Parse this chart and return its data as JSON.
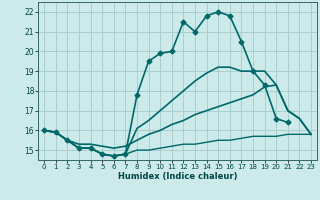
{
  "xlabel": "Humidex (Indice chaleur)",
  "background_color": "#cceaea",
  "grid_color": "#aacfcf",
  "line_color": "#006868",
  "xlim": [
    -0.5,
    23.5
  ],
  "ylim": [
    14.5,
    22.5
  ],
  "xticks": [
    0,
    1,
    2,
    3,
    4,
    5,
    6,
    7,
    8,
    9,
    10,
    11,
    12,
    13,
    14,
    15,
    16,
    17,
    18,
    19,
    20,
    21,
    22,
    23
  ],
  "yticks": [
    15,
    16,
    17,
    18,
    19,
    20,
    21,
    22
  ],
  "series": [
    {
      "x": [
        0,
        1,
        2,
        3,
        4,
        5,
        6,
        7,
        8,
        9,
        10,
        11,
        12,
        13,
        14,
        15,
        16,
        17,
        18,
        19,
        20,
        21
      ],
      "y": [
        16.0,
        15.9,
        15.5,
        15.1,
        15.1,
        14.8,
        14.7,
        14.8,
        17.8,
        19.5,
        19.9,
        20.0,
        21.5,
        21.0,
        21.8,
        22.0,
        21.8,
        20.5,
        19.0,
        18.3,
        16.6,
        16.4
      ],
      "marker": "D",
      "markersize": 2.5,
      "linewidth": 1.2
    },
    {
      "x": [
        0,
        1,
        2,
        3,
        4,
        5,
        6,
        7,
        8,
        9,
        10,
        11,
        12,
        13,
        14,
        15,
        16,
        17,
        18,
        19,
        20,
        21,
        22,
        23
      ],
      "y": [
        16.0,
        15.9,
        15.5,
        15.1,
        15.1,
        14.8,
        14.7,
        14.8,
        16.1,
        16.5,
        17.0,
        17.5,
        18.0,
        18.5,
        18.9,
        19.2,
        19.2,
        19.0,
        19.0,
        19.0,
        18.3,
        17.0,
        16.6,
        15.8
      ],
      "marker": null,
      "markersize": 0,
      "linewidth": 1.2
    },
    {
      "x": [
        0,
        1,
        2,
        3,
        4,
        5,
        6,
        7,
        8,
        9,
        10,
        11,
        12,
        13,
        14,
        15,
        16,
        17,
        18,
        19,
        20,
        21,
        22,
        23
      ],
      "y": [
        16.0,
        15.9,
        15.5,
        15.3,
        15.3,
        15.2,
        15.1,
        15.2,
        15.5,
        15.8,
        16.0,
        16.3,
        16.5,
        16.8,
        17.0,
        17.2,
        17.4,
        17.6,
        17.8,
        18.2,
        18.3,
        17.0,
        16.6,
        15.8
      ],
      "marker": null,
      "markersize": 0,
      "linewidth": 1.2
    },
    {
      "x": [
        0,
        1,
        2,
        3,
        4,
        5,
        6,
        7,
        8,
        9,
        10,
        11,
        12,
        13,
        14,
        15,
        16,
        17,
        18,
        19,
        20,
        21,
        22,
        23
      ],
      "y": [
        16.0,
        15.9,
        15.5,
        15.1,
        15.1,
        14.8,
        14.7,
        14.8,
        15.0,
        15.0,
        15.1,
        15.2,
        15.3,
        15.3,
        15.4,
        15.5,
        15.5,
        15.6,
        15.7,
        15.7,
        15.7,
        15.8,
        15.8,
        15.8
      ],
      "marker": null,
      "markersize": 0,
      "linewidth": 1.0
    }
  ]
}
